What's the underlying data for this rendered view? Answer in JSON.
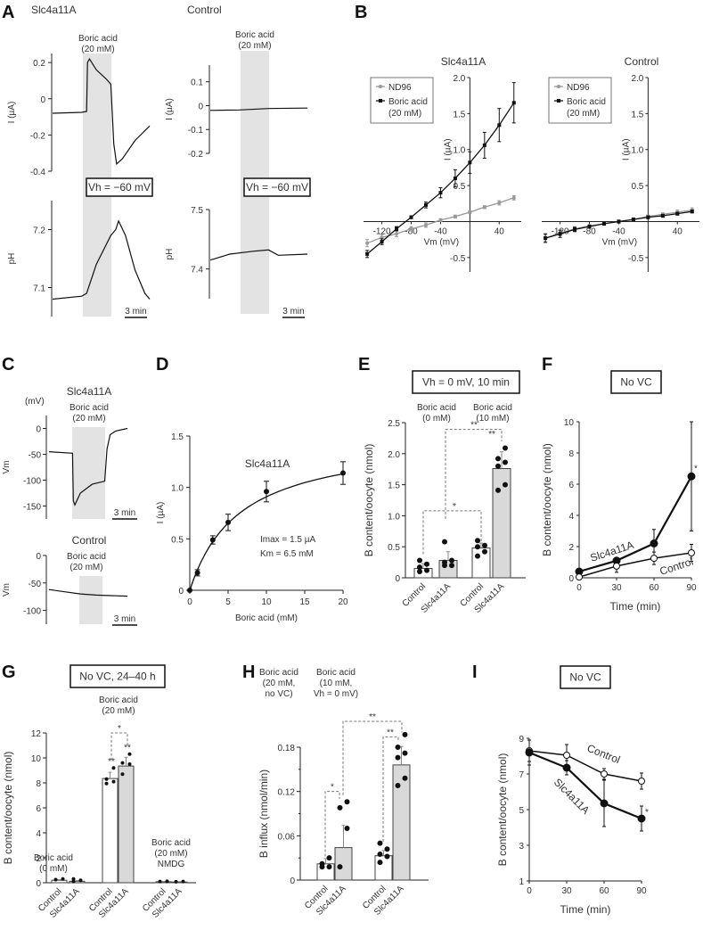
{
  "panel_labels": [
    "A",
    "B",
    "C",
    "D",
    "E",
    "F",
    "G",
    "H",
    "I"
  ],
  "chart_data": [
    {
      "id": "A",
      "type": "line",
      "traces": [
        {
          "name": "Slc4a11A current",
          "title": "Slc4a11A",
          "ylabel": "I (µA)",
          "yticks": [
            0.2,
            0,
            -0.2,
            -0.4
          ],
          "ylim": [
            -0.4,
            0.25
          ],
          "shade_label": "Boric acid (20 mM)",
          "shade_label_lines": [
            "Boric acid",
            "(20 mM)"
          ],
          "points": [
            [
              0,
              -0.08
            ],
            [
              0.3,
              -0.075
            ],
            [
              0.35,
              -0.07
            ],
            [
              0.36,
              0.2
            ],
            [
              0.38,
              0.22
            ],
            [
              0.45,
              0.16
            ],
            [
              0.55,
              0.11
            ],
            [
              0.6,
              0.08
            ],
            [
              0.63,
              -0.25
            ],
            [
              0.66,
              -0.36
            ],
            [
              0.72,
              -0.33
            ],
            [
              0.85,
              -0.23
            ],
            [
              1,
              -0.15
            ]
          ]
        },
        {
          "name": "Control current",
          "title": "Control",
          "ylabel": "I (µA)",
          "yticks": [
            0.1,
            0,
            -0.1,
            -0.2
          ],
          "ylim": [
            -0.2,
            0.17
          ],
          "points": [
            [
              0,
              -0.02
            ],
            [
              0.3,
              -0.018
            ],
            [
              0.6,
              -0.012
            ],
            [
              1,
              -0.01
            ]
          ]
        },
        {
          "name": "Slc4a11A pH",
          "ylabel": "pH",
          "yticks": [
            7.2,
            7.1
          ],
          "ylim": [
            7.05,
            7.25
          ],
          "points": [
            [
              0,
              7.08
            ],
            [
              0.3,
              7.085
            ],
            [
              0.35,
              7.09
            ],
            [
              0.45,
              7.14
            ],
            [
              0.6,
              7.19
            ],
            [
              0.65,
              7.2
            ],
            [
              0.68,
              7.215
            ],
            [
              0.75,
              7.19
            ],
            [
              0.85,
              7.13
            ],
            [
              0.95,
              7.09
            ],
            [
              1,
              7.08
            ]
          ]
        },
        {
          "name": "Control pH",
          "ylabel": "pH",
          "yticks": [
            7.5,
            7.4
          ],
          "ylim": [
            7.35,
            7.5
          ],
          "points": [
            [
              0,
              7.415
            ],
            [
              0.2,
              7.425
            ],
            [
              0.45,
              7.43
            ],
            [
              0.6,
              7.432
            ],
            [
              0.7,
              7.423
            ],
            [
              1,
              7.425
            ]
          ]
        }
      ],
      "annotation": "Vh = −60 mV",
      "scalebar": "3 min"
    },
    {
      "id": "B-left",
      "type": "line",
      "title": "Slc4a11A",
      "xlabel": "Vm (mV)",
      "ylabel": "I (µA)",
      "x": [
        -140,
        -120,
        -100,
        -80,
        -60,
        -40,
        -20,
        0,
        20,
        40,
        60
      ],
      "xticks": [
        -120,
        -80,
        -40,
        40
      ],
      "xtick_labels": [
        "-120",
        "-80",
        "-40",
        "40"
      ],
      "yticks": [
        -0.5,
        0.5,
        1.0,
        1.5,
        2.0
      ],
      "ytick_labels": [
        "-0.5",
        "0.5",
        "1.0",
        "1.5",
        "2.0"
      ],
      "xlim": [
        -145,
        70
      ],
      "ylim": [
        -0.7,
        2.0
      ],
      "series": [
        {
          "name": "ND96",
          "values": [
            -0.3,
            -0.22,
            -0.17,
            -0.1,
            -0.05,
            0.02,
            0.07,
            0.13,
            0.2,
            0.26,
            0.33
          ],
          "errors": [
            0.05,
            0.04,
            0.04,
            0.03,
            0.03,
            0.02,
            0.02,
            0.02,
            0.02,
            0.03,
            0.03
          ]
        },
        {
          "name": "Boric acid (20 mM)",
          "values": [
            -0.45,
            -0.28,
            -0.1,
            0.06,
            0.23,
            0.4,
            0.6,
            0.82,
            1.06,
            1.34,
            1.65
          ],
          "errors": [
            0.05,
            0.04,
            0.03,
            0.02,
            0.04,
            0.07,
            0.12,
            0.15,
            0.18,
            0.23,
            0.28
          ]
        }
      ],
      "legend": [
        "ND96",
        "Boric acid",
        "(20 mM)"
      ],
      "legend_position": "top-left"
    },
    {
      "id": "B-right",
      "type": "line",
      "title": "Control",
      "xlabel": "Vm (mV)",
      "ylabel": "I (µA)",
      "x": [
        -140,
        -120,
        -100,
        -80,
        -60,
        -40,
        -20,
        0,
        20,
        40,
        60
      ],
      "xticks": [
        -120,
        -80,
        -40,
        40
      ],
      "xtick_labels": [
        "-120",
        "-80",
        "-40",
        "40"
      ],
      "yticks": [
        -0.5,
        0.5,
        1.0,
        1.5,
        2.0
      ],
      "ytick_labels": [
        "-0.5",
        "0.5",
        "1.0",
        "1.5",
        "2.0"
      ],
      "xlim": [
        -145,
        70
      ],
      "ylim": [
        -0.7,
        2.0
      ],
      "series": [
        {
          "name": "ND96",
          "values": [
            -0.23,
            -0.16,
            -0.1,
            -0.06,
            -0.03,
            0,
            0.03,
            0.07,
            0.1,
            0.13,
            0.16
          ],
          "errors": [
            0.05,
            0.04,
            0.03,
            0.02,
            0.02,
            0.02,
            0.02,
            0.02,
            0.02,
            0.03,
            0.03
          ]
        },
        {
          "name": "Boric acid (20 mM)",
          "values": [
            -0.23,
            -0.17,
            -0.11,
            -0.07,
            -0.03,
            0,
            0.03,
            0.06,
            0.08,
            0.11,
            0.14
          ],
          "errors": [
            0.06,
            0.05,
            0.03,
            0.02,
            0.02,
            0.02,
            0.02,
            0.02,
            0.02,
            0.02,
            0.02
          ]
        }
      ],
      "legend": [
        "ND96",
        "Boric acid",
        "(20 mM)"
      ],
      "legend_position": "top-left"
    },
    {
      "id": "C",
      "type": "line",
      "unit_label": "(mV)",
      "traces": [
        {
          "title": "Slc4a11A",
          "ylabel": "Vm",
          "yticks": [
            0,
            -50,
            -100,
            -150
          ],
          "ylim": [
            -175,
            25
          ],
          "shade_label_lines": [
            "Boric acid",
            "(20 mM)"
          ],
          "points": [
            [
              0,
              -45
            ],
            [
              0.3,
              -48
            ],
            [
              0.31,
              -140
            ],
            [
              0.33,
              -148
            ],
            [
              0.4,
              -125
            ],
            [
              0.55,
              -108
            ],
            [
              0.71,
              -102
            ],
            [
              0.74,
              -40
            ],
            [
              0.78,
              -12
            ],
            [
              0.85,
              -5
            ],
            [
              1,
              0
            ]
          ]
        },
        {
          "title": "Control",
          "ylabel": "Vm",
          "yticks": [
            0,
            -50,
            -100
          ],
          "ylim": [
            -125,
            0
          ],
          "shade_label_lines": [
            "Boric acid",
            "(20 mM)"
          ],
          "points": [
            [
              0,
              -62
            ],
            [
              0.2,
              -66
            ],
            [
              0.4,
              -70
            ],
            [
              0.6,
              -72
            ],
            [
              1,
              -74
            ]
          ]
        }
      ],
      "scalebar": "3 min"
    },
    {
      "id": "D",
      "type": "scatter",
      "title": "Slc4a11A",
      "xlabel": "Boric acid (mM)",
      "ylabel": "I (µA)",
      "x": [
        0,
        1,
        3,
        5,
        10,
        20
      ],
      "values": [
        0,
        0.17,
        0.49,
        0.66,
        0.96,
        1.14
      ],
      "errors": [
        0,
        0.03,
        0.04,
        0.08,
        0.1,
        0.11
      ],
      "xticks": [
        0,
        5,
        10,
        15,
        20
      ],
      "yticks": [
        0,
        0.5,
        1.0,
        1.5
      ],
      "ytick_labels": [
        "0",
        "0.5",
        "1.0",
        "1.5"
      ],
      "xlim": [
        0,
        20
      ],
      "ylim": [
        0,
        1.5
      ],
      "fit": {
        "Imax": 1.5,
        "Km": 6.5
      },
      "annotations": [
        "Imax = 1.5 µA",
        "Km = 6.5 mM"
      ]
    },
    {
      "id": "E",
      "type": "bar",
      "box_label": "Vh = 0 mV, 10 min",
      "group_labels": [
        [
          "Boric acid",
          "(0 mM)"
        ],
        [
          "Boric acid",
          "(10 mM)"
        ]
      ],
      "categories": [
        "Control",
        "Slc4a11A",
        "Control",
        "Slc4a11A"
      ],
      "values": [
        0.15,
        0.28,
        0.48,
        1.76
      ],
      "errors": [
        0.08,
        0.14,
        0.08,
        0.27
      ],
      "points": [
        [
          0.1,
          0.12,
          0.17,
          0.22,
          0.28
        ],
        [
          0.2,
          0.2,
          0.25,
          0.28,
          0.58
        ],
        [
          0.35,
          0.42,
          0.5,
          0.52,
          0.6
        ],
        [
          1.41,
          1.5,
          1.8,
          1.86,
          1.92,
          2.09
        ]
      ],
      "ylabel": "B content/oocyte (nmol)",
      "yticks": [
        0,
        0.5,
        1.0,
        1.5,
        2.0,
        2.5
      ],
      "ytick_labels": [
        "0",
        "0.5",
        "1.0",
        "1.5",
        "2.0",
        "2.5"
      ],
      "ylim": [
        0,
        2.5
      ],
      "significance": [
        {
          "from": 0,
          "to": 2,
          "label": "*"
        },
        {
          "from": 1,
          "to": 3,
          "label": "**"
        },
        {
          "at": 3,
          "label": "**"
        }
      ]
    },
    {
      "id": "F",
      "type": "line",
      "box_label": "No VC",
      "xlabel": "Time (min)",
      "ylabel": "B content/oocyte (nmol)",
      "x": [
        0,
        30,
        60,
        90
      ],
      "xticks": [
        0,
        30,
        60,
        90
      ],
      "yticks": [
        0,
        2,
        4,
        6,
        8,
        10
      ],
      "xlim": [
        0,
        90
      ],
      "ylim": [
        0,
        10
      ],
      "series": [
        {
          "name": "Slc4a11A",
          "values": [
            0.4,
            1.1,
            2.2,
            6.5
          ],
          "errors": [
            0.1,
            0.15,
            0.9,
            3.5
          ],
          "filled": true
        },
        {
          "name": "Control",
          "values": [
            0.05,
            0.75,
            1.25,
            1.6
          ],
          "errors": [
            0.05,
            0.4,
            0.4,
            0.55
          ],
          "filled": false
        }
      ],
      "annotations": [
        "*"
      ]
    },
    {
      "id": "G",
      "type": "bar",
      "box_label": "No VC, 24–40 h",
      "group_labels": [
        [
          "Boric acid",
          "(0 mM)"
        ],
        [
          "Boric acid",
          "(20 mM)"
        ],
        [
          "Boric acid",
          "(20 mM)",
          "NMDG"
        ]
      ],
      "categories": [
        "Control",
        "Slc4a11A",
        "Control",
        "Slc4a11A",
        "Control",
        "Slc4a11A"
      ],
      "values": [
        0.2,
        0.12,
        8.35,
        9.35,
        0.08,
        0.06
      ],
      "errors": [
        0.05,
        0.05,
        0.5,
        0.7,
        0.03,
        0.03
      ],
      "points": [
        [
          0.25,
          0.3
        ],
        [
          0.1,
          0.2,
          0.3
        ],
        [
          7.95,
          8.1,
          8.3,
          9.2
        ],
        [
          8.7,
          9.5,
          9.6,
          10.3
        ],
        [
          0.1,
          0.12
        ],
        [
          0.08,
          0.1
        ]
      ],
      "ylabel": "B content/oocyte (nmol)",
      "yticks": [
        0,
        2,
        4,
        6,
        8,
        10,
        12
      ],
      "ylim": [
        0,
        12
      ],
      "significance": [
        {
          "from": 2,
          "to": 3,
          "label": "*"
        },
        {
          "at": 2,
          "label": "**"
        },
        {
          "at": 3,
          "label": "**"
        }
      ]
    },
    {
      "id": "H",
      "type": "bar",
      "group_labels": [
        [
          "Boric acid",
          "(20 mM,",
          "no VC)"
        ],
        [
          "Boric acid",
          "(10 mM,",
          "Vh = 0 mV)"
        ]
      ],
      "categories": [
        "Control",
        "Slc4a11A",
        "Control",
        "Slc4a11A"
      ],
      "values": [
        0.022,
        0.044,
        0.033,
        0.156
      ],
      "errors": [
        0.007,
        0.03,
        0.007,
        0.025
      ],
      "points": [
        [
          0.018,
          0.018,
          0.022,
          0.03
        ],
        [
          0.018,
          0.07,
          0.098,
          0.106
        ],
        [
          0.024,
          0.032,
          0.035,
          0.042,
          0.05
        ],
        [
          0.128,
          0.138,
          0.166,
          0.172,
          0.18,
          0.197
        ]
      ],
      "ylabel": "B influx (nmol/min)",
      "yticks": [
        0,
        0.06,
        0.12,
        0.18
      ],
      "ytick_labels": [
        "0",
        "0.06",
        "0.12",
        "0.18"
      ],
      "ylim": [
        0,
        0.18
      ],
      "significance": [
        {
          "from": 0,
          "to": 1,
          "label": "*"
        },
        {
          "from": 2,
          "to": 3,
          "label": "**"
        },
        {
          "from": 1,
          "to": 3,
          "label": "**"
        }
      ]
    },
    {
      "id": "I",
      "type": "line",
      "box_label": "No VC",
      "xlabel": "Time (min)",
      "ylabel": "B content/oocyte (nmol)",
      "x": [
        0,
        30,
        60,
        90
      ],
      "xticks": [
        0,
        30,
        60,
        90
      ],
      "yticks": [
        1,
        3,
        5,
        7,
        9
      ],
      "xlim": [
        0,
        90
      ],
      "ylim": [
        1,
        9
      ],
      "series": [
        {
          "name": "Control",
          "values": [
            8.3,
            8.05,
            7.0,
            6.6
          ],
          "errors": [
            0.6,
            0.6,
            0.3,
            0.45
          ],
          "filled": false
        },
        {
          "name": "Slc4a11A",
          "values": [
            8.2,
            7.35,
            5.35,
            4.5
          ],
          "errors": [
            0.7,
            0.4,
            1.3,
            0.7
          ],
          "filled": true
        }
      ],
      "annotations": [
        "*"
      ]
    }
  ]
}
